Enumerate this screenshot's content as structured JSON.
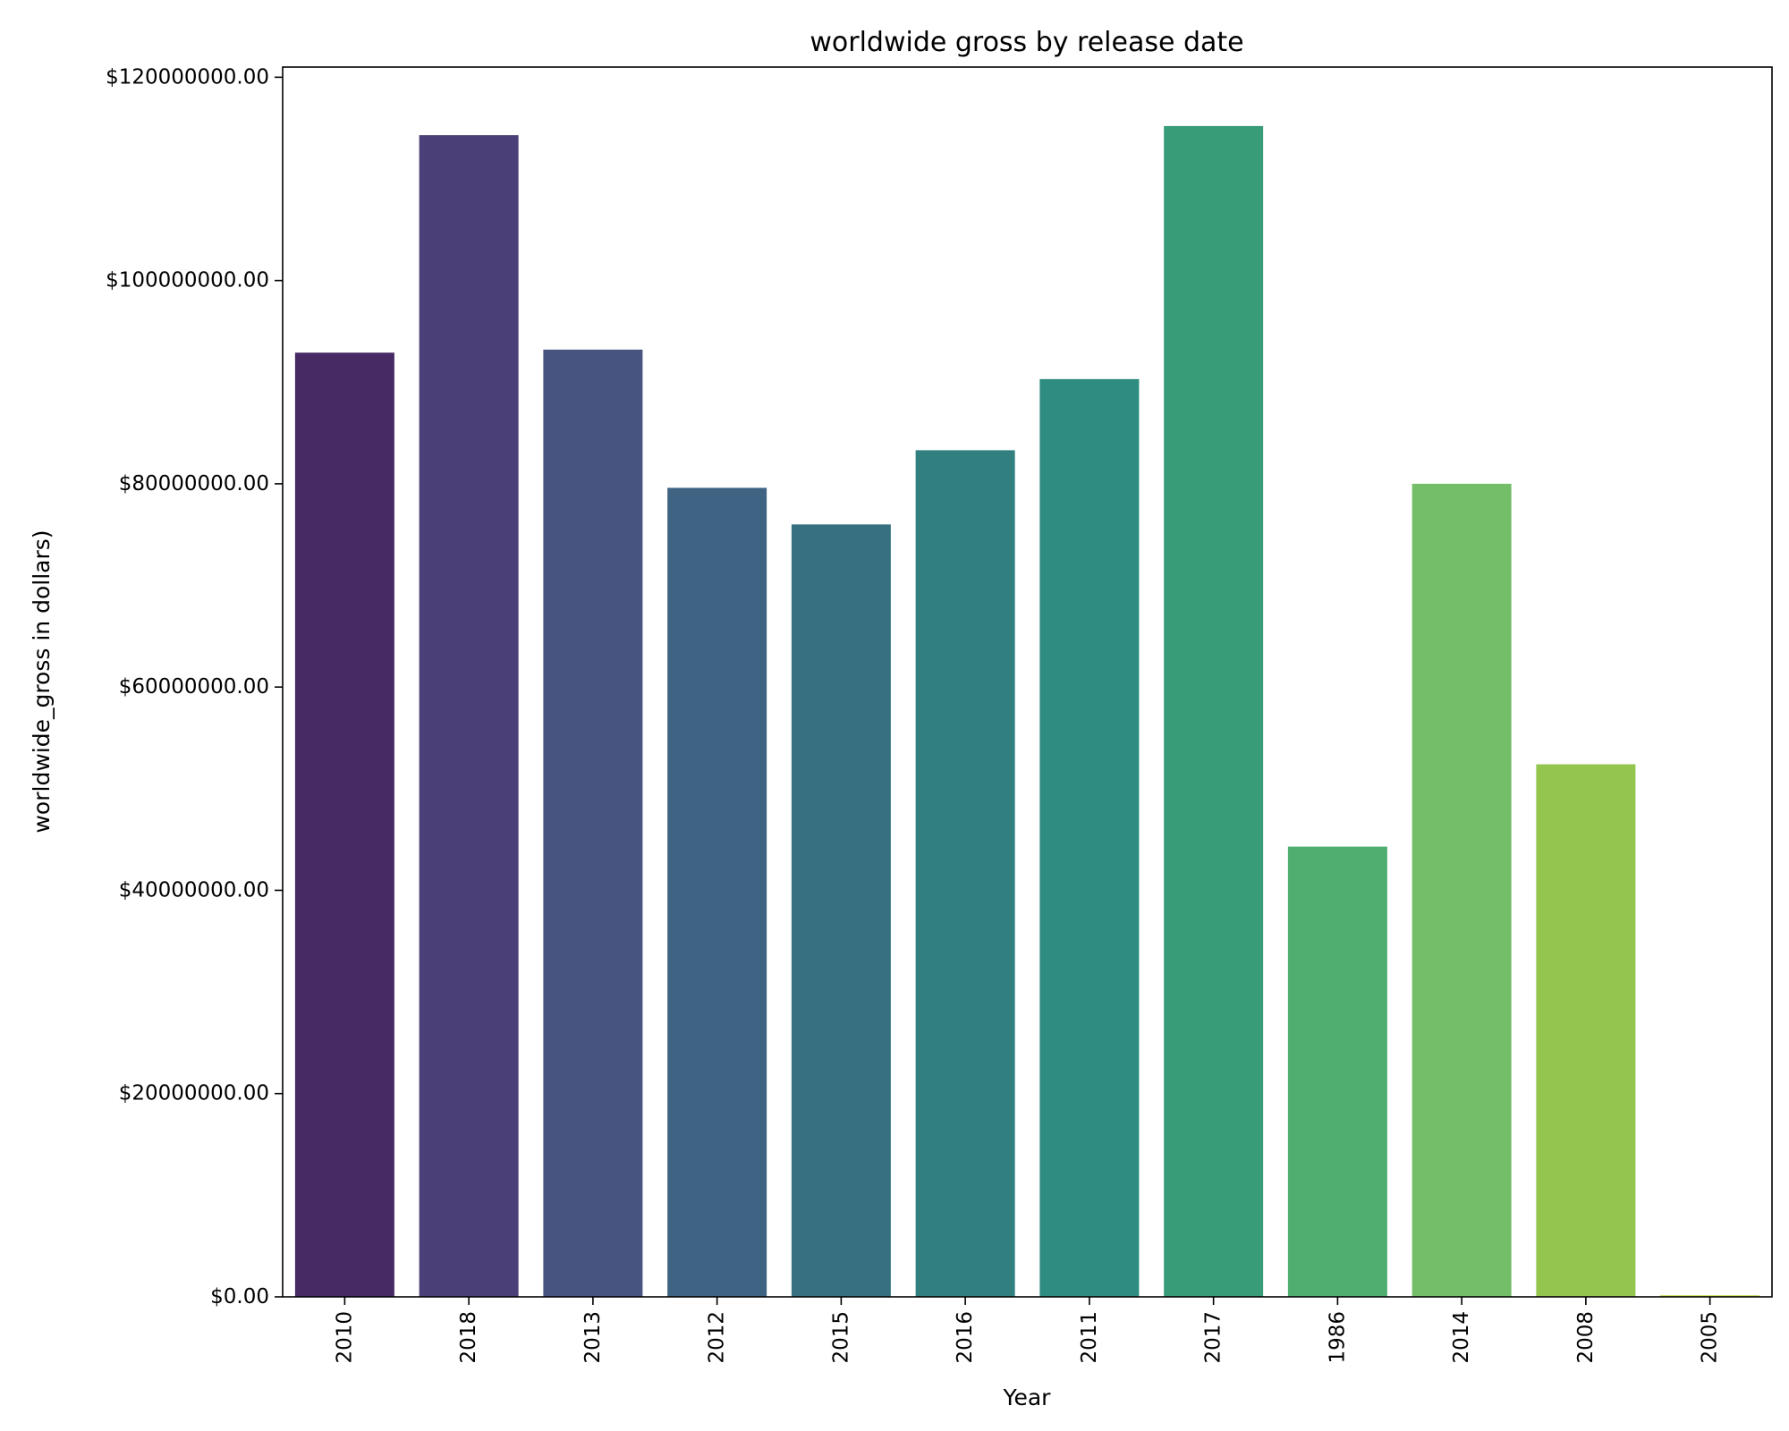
{
  "chart_data": {
    "type": "bar",
    "title": "worldwide gross by release date",
    "xlabel": "Year",
    "ylabel": "worldwide_gross in dollars)",
    "categories": [
      "2010",
      "2018",
      "2013",
      "2012",
      "2015",
      "2016",
      "2011",
      "2017",
      "1986",
      "2014",
      "2008",
      "2005"
    ],
    "values": [
      92900000,
      114300000,
      93200000,
      79600000,
      76000000,
      83300000,
      90300000,
      115200000,
      44300000,
      80000000,
      52400000,
      150000
    ],
    "colors": [
      "#472a64",
      "#4b3f77",
      "#46547f",
      "#3f6382",
      "#377181",
      "#317f7f",
      "#2f8c80",
      "#389c79",
      "#50ae70",
      "#74be6a",
      "#94c54f",
      "#b5d63a"
    ],
    "ylim": [
      0,
      121000000
    ],
    "yticks": [
      0,
      20000000,
      40000000,
      60000000,
      80000000,
      100000000,
      120000000
    ],
    "ytick_labels": [
      "$0.00",
      "$20000000.00",
      "$40000000.00",
      "$60000000.00",
      "$80000000.00",
      "$100000000.00",
      "$120000000.00"
    ],
    "grid": false,
    "legend": "none"
  }
}
